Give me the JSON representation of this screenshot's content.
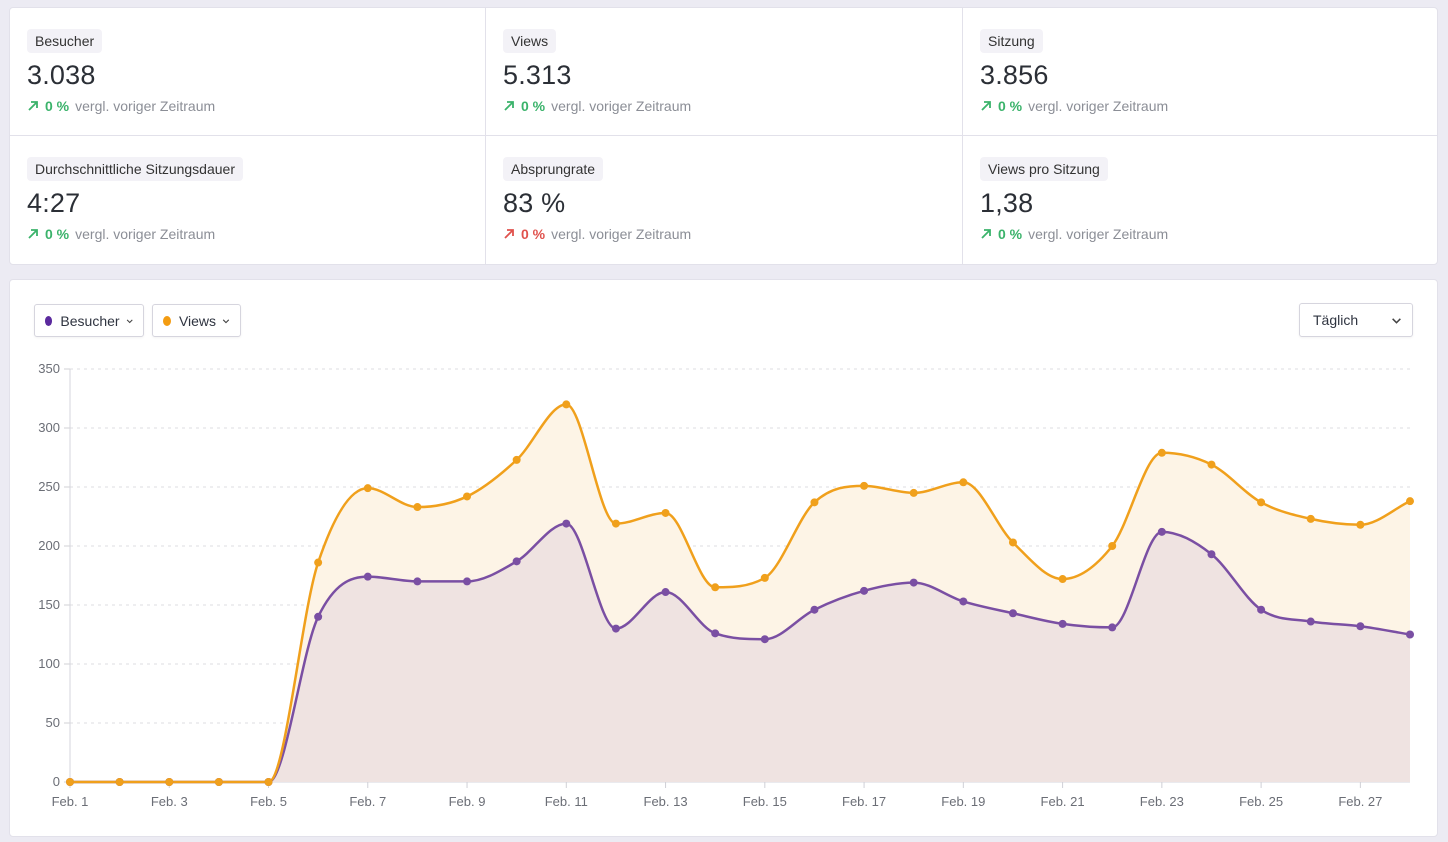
{
  "stats": [
    {
      "label": "Besucher",
      "value": "3.038",
      "change": "0 %",
      "trend": "up",
      "sentiment": "good",
      "compare": "vergl. voriger Zeitraum"
    },
    {
      "label": "Views",
      "value": "5.313",
      "change": "0 %",
      "trend": "up",
      "sentiment": "good",
      "compare": "vergl. voriger Zeitraum"
    },
    {
      "label": "Sitzung",
      "value": "3.856",
      "change": "0 %",
      "trend": "up",
      "sentiment": "good",
      "compare": "vergl. voriger Zeitraum"
    },
    {
      "label": "Durchschnittliche Sitzungsdauer",
      "value": "4:27",
      "change": "0 %",
      "trend": "up",
      "sentiment": "good",
      "compare": "vergl. voriger Zeitraum"
    },
    {
      "label": "Absprungrate",
      "value": "83 %",
      "change": "0 %",
      "trend": "up",
      "sentiment": "bad",
      "compare": "vergl. voriger Zeitraum"
    },
    {
      "label": "Views pro Sitzung",
      "value": "1,38",
      "change": "0 %",
      "trend": "up",
      "sentiment": "good",
      "compare": "vergl. voriger Zeitraum"
    }
  ],
  "colors": {
    "good": "#3bb36b",
    "bad": "#e0524d",
    "visitors": "#7a4fa3",
    "visitors_dot": "#5b2a9e",
    "views": "#f0a01c",
    "visitors_fill": "#efe3e1",
    "views_fill": "#fdf4e6"
  },
  "controls": {
    "metric1": {
      "label": "Besucher",
      "color": "#5b2a9e"
    },
    "metric2": {
      "label": "Views",
      "color": "#f39c12"
    },
    "interval": {
      "selected": "Täglich"
    }
  },
  "chart_data": {
    "type": "area",
    "title": "",
    "xlabel": "",
    "ylabel": "",
    "ylim": [
      0,
      350
    ],
    "yticks": [
      0,
      50,
      100,
      150,
      200,
      250,
      300,
      350
    ],
    "grid": true,
    "legend": "top-left",
    "x": [
      "Feb. 1",
      "Feb. 2",
      "Feb. 3",
      "Feb. 4",
      "Feb. 5",
      "Feb. 6",
      "Feb. 7",
      "Feb. 8",
      "Feb. 9",
      "Feb. 10",
      "Feb. 11",
      "Feb. 12",
      "Feb. 13",
      "Feb. 14",
      "Feb. 15",
      "Feb. 16",
      "Feb. 17",
      "Feb. 18",
      "Feb. 19",
      "Feb. 20",
      "Feb. 21",
      "Feb. 22",
      "Feb. 23",
      "Feb. 24",
      "Feb. 25",
      "Feb. 26",
      "Feb. 27",
      "Feb. 28"
    ],
    "xtick_labels": [
      "Feb. 1",
      "Feb. 3",
      "Feb. 5",
      "Feb. 7",
      "Feb. 9",
      "Feb. 11",
      "Feb. 13",
      "Feb. 15",
      "Feb. 17",
      "Feb. 19",
      "Feb. 21",
      "Feb. 23",
      "Feb. 25",
      "Feb. 27"
    ],
    "series": [
      {
        "name": "Views",
        "values": [
          0,
          0,
          0,
          0,
          0,
          186,
          249,
          233,
          242,
          273,
          320,
          219,
          228,
          165,
          173,
          237,
          251,
          245,
          254,
          203,
          172,
          200,
          279,
          269,
          237,
          223,
          218,
          238
        ]
      },
      {
        "name": "Besucher",
        "values": [
          0,
          0,
          0,
          0,
          0,
          140,
          174,
          170,
          170,
          187,
          219,
          130,
          161,
          126,
          121,
          146,
          162,
          169,
          153,
          143,
          134,
          131,
          212,
          193,
          146,
          136,
          132,
          125
        ]
      }
    ]
  }
}
